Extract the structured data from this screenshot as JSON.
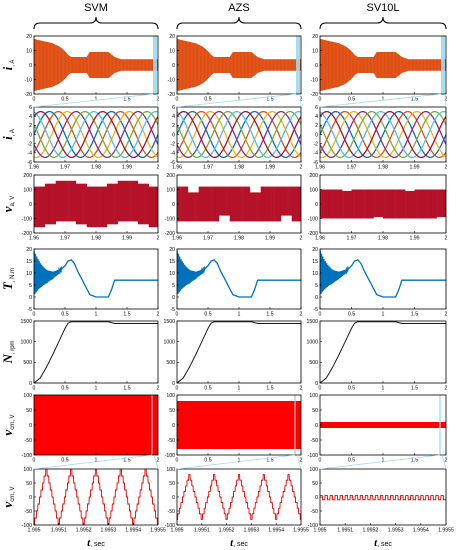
{
  "columns": [
    {
      "title": "SVM"
    },
    {
      "title": "AZS"
    },
    {
      "title": "SV10L"
    }
  ],
  "row_labels": [
    {
      "main": "i",
      "sub": ", A"
    },
    {
      "main": "i",
      "sub": ", A"
    },
    {
      "main": "v",
      "sub": "a, V"
    },
    {
      "main": "T",
      "sub": ", N.m"
    },
    {
      "main": "N",
      "sub": ", rpm"
    },
    {
      "main": "v",
      "sub": "cm, V"
    },
    {
      "main": "v",
      "sub": "cm, V"
    }
  ],
  "x_labels": {
    "main": "t",
    "sub": ", sec"
  },
  "colors": {
    "current_envelope": "#e8581c",
    "phase_series": [
      "#0070c0",
      "#d95319",
      "#edb120",
      "#7e2f8e",
      "#77ac30",
      "#4dbeee",
      "#a2142f"
    ],
    "voltage_fill": "#b5122a",
    "torque": "#0072bd",
    "speed": "#1a1a1a",
    "vcm_fill": "#ff0000",
    "vcm_line": "#e00000",
    "zoom_highlight": "#9ed8ef"
  },
  "chart_data": [
    {
      "row": 1,
      "type": "area",
      "ylabel": "i, A",
      "xlim": [
        0,
        2
      ],
      "ylim": [
        -20,
        20
      ],
      "xticks": [
        "0",
        "0.5",
        "1",
        "1.5",
        "2"
      ],
      "yticks": [
        "20",
        "10",
        "0",
        "-10",
        "-20"
      ],
      "series": [
        {
          "x": [
            0,
            0.05,
            0.1,
            0.2,
            0.3,
            0.4,
            0.45,
            0.5,
            0.55,
            0.6,
            0.7,
            0.8,
            0.85,
            0.9,
            1.0,
            1.2,
            1.3,
            1.4,
            2.0
          ],
          "values": [
            18,
            17.5,
            17,
            16,
            15,
            13,
            11.5,
            9.5,
            7,
            5.5,
            5.5,
            5.5,
            5.5,
            9,
            9,
            9,
            5.5,
            4,
            4
          ]
        }
      ]
    },
    {
      "row": 2,
      "type": "line",
      "ylabel": "i, A",
      "xlim": [
        1.96,
        2.0
      ],
      "ylim": [
        -6,
        6
      ],
      "xticks": [
        "1.96",
        "1.97",
        "1.98",
        "1.99",
        "2"
      ],
      "yticks": [
        "6",
        "4",
        "2",
        "0",
        "-2",
        "-4",
        "-6"
      ],
      "amplitude": 5,
      "frequency_hz": 50,
      "phase_count": 7
    },
    {
      "row": 3,
      "type": "area",
      "ylabel": "va, V",
      "xlim": [
        1.96,
        2.0
      ],
      "ylim": [
        -200,
        200
      ],
      "xticks": [
        "1.96",
        "1.97",
        "1.98",
        "1.99",
        "2"
      ],
      "yticks": [
        "200",
        "100",
        "0",
        "-100",
        "-200"
      ],
      "panels": [
        {
          "column": "SVM",
          "pattern": "triangular",
          "band": [
            -100,
            100
          ],
          "swing": 60,
          "period": 0.02
        },
        {
          "column": "AZS",
          "pattern": "notched",
          "band": [
            -100,
            100
          ],
          "notch_depth": 40,
          "period": 0.02
        },
        {
          "column": "SV10L",
          "pattern": "flat",
          "band": [
            -100,
            100
          ],
          "notch_depth": 10,
          "period": 0.02
        }
      ]
    },
    {
      "row": 4,
      "type": "line",
      "ylabel": "T, N.m",
      "xlim": [
        0,
        2
      ],
      "ylim": [
        -5,
        20
      ],
      "xticks": [
        "0",
        "0.5",
        "1",
        "1.5",
        "2"
      ],
      "yticks": [
        "20",
        "15",
        "10",
        "5",
        "0",
        "-5"
      ],
      "series": [
        {
          "x": [
            0,
            0.1,
            0.2,
            0.3,
            0.4,
            0.5,
            0.55,
            0.6,
            0.65,
            0.7,
            0.8,
            0.9,
            1.0,
            1.1,
            1.2,
            1.25,
            1.3,
            1.5,
            2.0
          ],
          "values": [
            10,
            9,
            8.5,
            9,
            10.5,
            13,
            15,
            15.5,
            14,
            11,
            6,
            1,
            0,
            0,
            0,
            3,
            7,
            7,
            7
          ]
        }
      ]
    },
    {
      "row": 5,
      "type": "line",
      "ylabel": "N, rpm",
      "xlim": [
        0,
        2
      ],
      "ylim": [
        0,
        1500
      ],
      "xticks": [
        "0",
        "0.5",
        "1",
        "1.5",
        "2"
      ],
      "yticks": [
        "1500",
        "1000",
        "500",
        "0"
      ],
      "series": [
        {
          "x": [
            0,
            0.1,
            0.2,
            0.3,
            0.4,
            0.5,
            0.55,
            0.6,
            1.2,
            1.3,
            2.0
          ],
          "values": [
            0,
            120,
            380,
            680,
            1000,
            1320,
            1450,
            1480,
            1480,
            1440,
            1440
          ]
        }
      ]
    },
    {
      "row": 6,
      "type": "area",
      "ylabel": "vcm, V",
      "xlim": [
        0,
        2
      ],
      "ylim": [
        -100,
        100
      ],
      "xticks": [
        "0",
        "0.5",
        "1",
        "1.5",
        "2"
      ],
      "yticks": [
        "100",
        "50",
        "0",
        "-50",
        "-100"
      ],
      "panels": [
        {
          "column": "SVM",
          "band": [
            -100,
            100
          ]
        },
        {
          "column": "AZS",
          "band": [
            -80,
            80
          ]
        },
        {
          "column": "SV10L",
          "band": [
            -10,
            10
          ]
        }
      ]
    },
    {
      "row": 7,
      "type": "line",
      "ylabel": "vcm, V",
      "xlim": [
        1.995,
        1.9955
      ],
      "ylim": [
        -100,
        100
      ],
      "xticks": [
        "1.995",
        "1.9951",
        "1.9952",
        "1.9953",
        "1.9954",
        "1.9955"
      ],
      "yticks": [
        "100",
        "50",
        "0",
        "-50",
        "-100"
      ],
      "panels": [
        {
          "column": "SVM",
          "pattern": "triangle-staircase",
          "peak": 100,
          "cycles": 5
        },
        {
          "column": "AZS",
          "pattern": "triangle-staircase",
          "peak": 80,
          "cycles": 5
        },
        {
          "column": "SV10L",
          "pattern": "square",
          "high": 5,
          "low": -10,
          "cycles": 25
        }
      ]
    }
  ]
}
